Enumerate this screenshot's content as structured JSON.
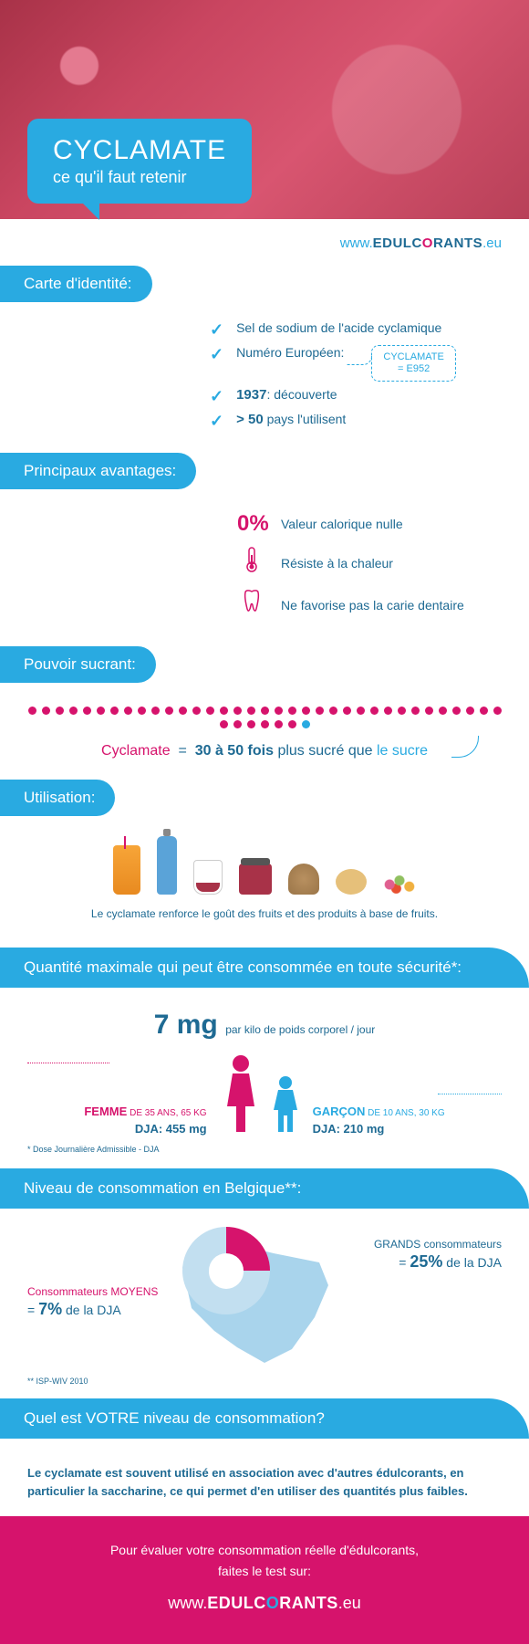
{
  "colors": {
    "blue": "#29aae1",
    "darkblue": "#1e6a93",
    "pink": "#d6136c",
    "lightblue": "#c2dff0"
  },
  "hero": {
    "title": "CYCLAMATE",
    "subtitle": "ce qu'il faut retenir"
  },
  "url": {
    "prefix": "www.",
    "brand_pre": "EDULC",
    "brand_o": "O",
    "brand_post": "RANTS",
    "suffix": ".eu"
  },
  "sections": {
    "identity": "Carte d'identité:",
    "advantages": "Principaux avantages:",
    "sweetening": "Pouvoir sucrant:",
    "usage": "Utilisation:",
    "maxqty": "Quantité maximale qui peut être consommée en toute sécurité*:",
    "belgium": "Niveau de consommation en Belgique**:",
    "yourlevel": "Quel est VOTRE niveau de consommation?"
  },
  "identity": {
    "item1": "Sel de sodium de l'acide cyclamique",
    "item2_label": "Numéro Européen:",
    "badge_line1": "CYCLAMATE",
    "badge_line2": "= E952",
    "item3_year": "1937",
    "item3_rest": ": découverte",
    "item4_num": "> 50",
    "item4_rest": " pays l'utilisent"
  },
  "advantages": {
    "a1_icon": "0%",
    "a1": "Valeur calorique nulle",
    "a2": "Résiste à la chaleur",
    "a3": "Ne favorise pas la carie dentaire"
  },
  "sweet": {
    "dots_total": 42,
    "dots_pink": 41,
    "pre": "Cyclamate",
    "eq": "=",
    "range": "30 à 50 fois",
    "mid": " plus sucré que ",
    "sugar": "le sucre"
  },
  "usage": {
    "caption": "Le cyclamate renforce le goût des fruits et des produits à base de fruits."
  },
  "maxqty": {
    "value": "7 mg",
    "unit": "par kilo de poids corporel / jour",
    "woman_label": "FEMME",
    "woman_detail": " DE 35 ANS, 65 KG",
    "woman_dja": "DJA: 455 mg",
    "boy_label": "GARÇON",
    "boy_detail": " DE 10 ANS, 30 KG",
    "boy_dja": "DJA: 210 mg",
    "footnote": "* Dose Journalière Admissible - DJA"
  },
  "belgium": {
    "pie_large_pct": 25,
    "pie_avg_pct": 7,
    "avg_label": "Consommateurs MOYENS",
    "avg_val_pre": "= ",
    "avg_val": "7%",
    "avg_val_post": " de la DJA",
    "large_label": "GRANDS consommateurs",
    "large_val_pre": "= ",
    "large_val": "25%",
    "large_val_post": " de la DJA",
    "source": "** ISP-WIV 2010"
  },
  "paragraph": "Le cyclamate est souvent utilisé en association avec d'autres édulcorants, en particulier la saccharine, ce qui permet d'en utiliser des quantités plus faibles.",
  "footer": {
    "text": "Pour évaluer votre consommation réelle d'édulcorants,\nfaites le test sur:"
  }
}
